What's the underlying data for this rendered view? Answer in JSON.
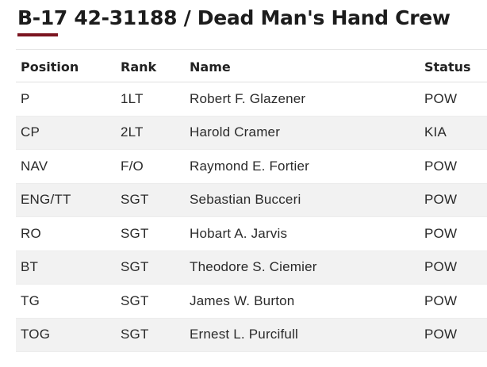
{
  "page_title": "B-17 42-31188 / Dead Man's Hand Crew",
  "accent_color": "#7b1420",
  "table": {
    "headers": {
      "position": "Position",
      "rank": "Rank",
      "name": "Name",
      "status": "Status"
    },
    "rows": [
      {
        "position": "P",
        "rank": "1LT",
        "name": "Robert F. Glazener",
        "status": "POW"
      },
      {
        "position": "CP",
        "rank": "2LT",
        "name": "Harold Cramer",
        "status": "KIA"
      },
      {
        "position": "NAV",
        "rank": "F/O",
        "name": "Raymond E. Fortier",
        "status": "POW"
      },
      {
        "position": "ENG/TT",
        "rank": "SGT",
        "name": "Sebastian Bucceri",
        "status": "POW"
      },
      {
        "position": "RO",
        "rank": "SGT",
        "name": "Hobart A. Jarvis",
        "status": "POW"
      },
      {
        "position": "BT",
        "rank": "SGT",
        "name": "Theodore S. Ciemier",
        "status": "POW"
      },
      {
        "position": "TG",
        "rank": "SGT",
        "name": "James W. Burton",
        "status": "POW"
      },
      {
        "position": "TOG",
        "rank": "SGT",
        "name": "Ernest L. Purcifull",
        "status": "POW"
      }
    ]
  }
}
